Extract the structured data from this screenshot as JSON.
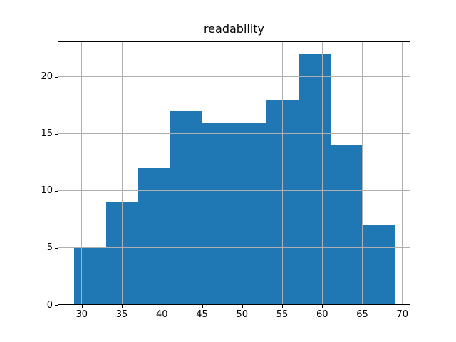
{
  "chart_data": {
    "type": "bar",
    "subtype": "histogram",
    "title": "readability",
    "xlabel": "",
    "ylabel": "",
    "bin_edges": [
      29,
      33,
      37,
      41,
      45,
      49,
      53,
      57,
      61,
      65,
      69
    ],
    "values": [
      5,
      9,
      12,
      17,
      16,
      16,
      18,
      22,
      14,
      7
    ],
    "xticks": [
      30,
      35,
      40,
      45,
      50,
      55,
      60,
      65,
      70
    ],
    "yticks": [
      0,
      5,
      10,
      15,
      20
    ],
    "xlim": [
      27,
      71
    ],
    "ylim": [
      0,
      23.1
    ],
    "grid": true,
    "grid_over_bars": true,
    "legend": false,
    "bar_color": "#1f77b4",
    "grid_color": "#b0b0b0",
    "spine_color": "#000000",
    "tick_color": "#000000",
    "text_color": "#000000",
    "background_color": "#ffffff"
  }
}
